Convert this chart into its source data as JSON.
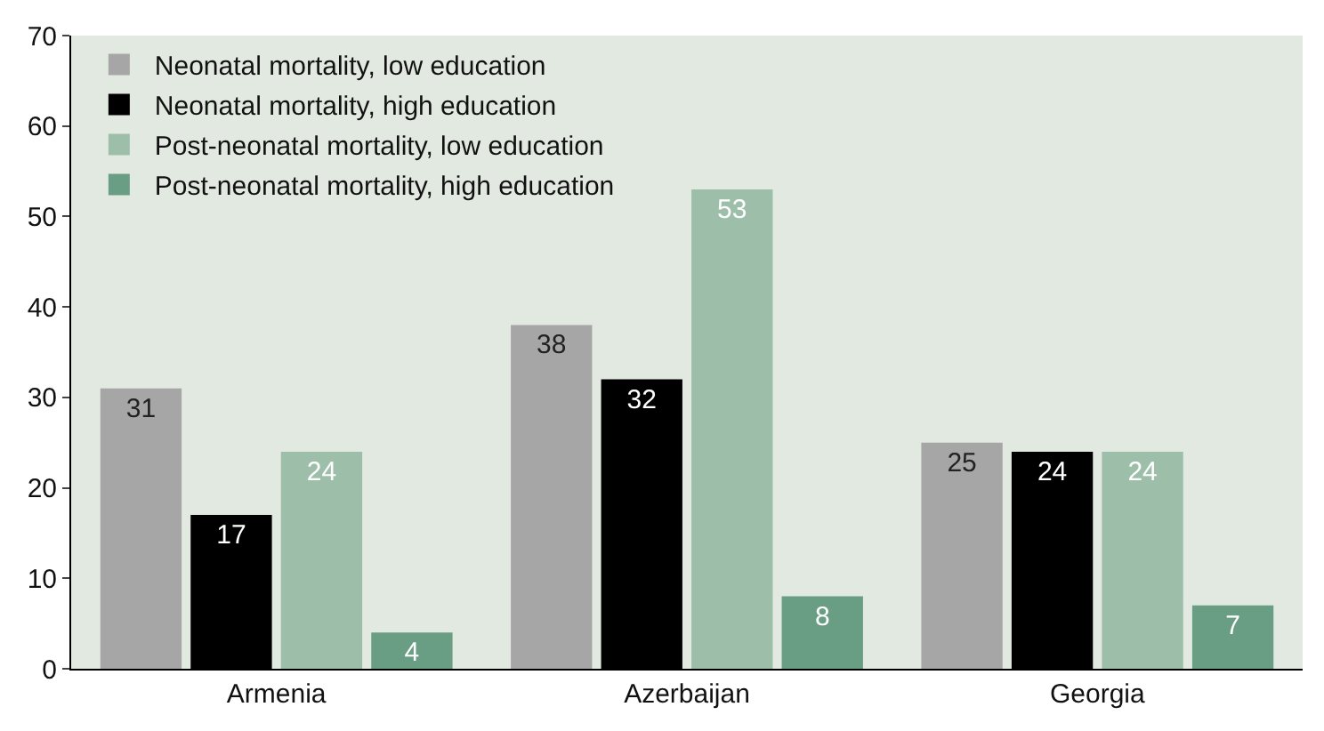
{
  "chart_data": {
    "type": "bar",
    "categories": [
      "Armenia",
      "Azerbaijan",
      "Georgia"
    ],
    "series": [
      {
        "name": "Neonatal mortality, low education",
        "color": "#a6a6a6",
        "values": [
          31,
          38,
          25
        ]
      },
      {
        "name": "Neonatal mortality, high education",
        "color": "#000000",
        "values": [
          17,
          32,
          24
        ]
      },
      {
        "name": "Post-neonatal mortality, low education",
        "color": "#9dbfaa",
        "values": [
          24,
          53,
          24
        ]
      },
      {
        "name": "Post-neonatal mortality, high education",
        "color": "#6a9e84",
        "values": [
          4,
          8,
          7
        ]
      }
    ],
    "ylim": [
      0,
      70
    ],
    "yticks": [
      0,
      10,
      20,
      30,
      40,
      50,
      60,
      70
    ],
    "grid": false,
    "legend": "top left",
    "data_labels": true
  }
}
